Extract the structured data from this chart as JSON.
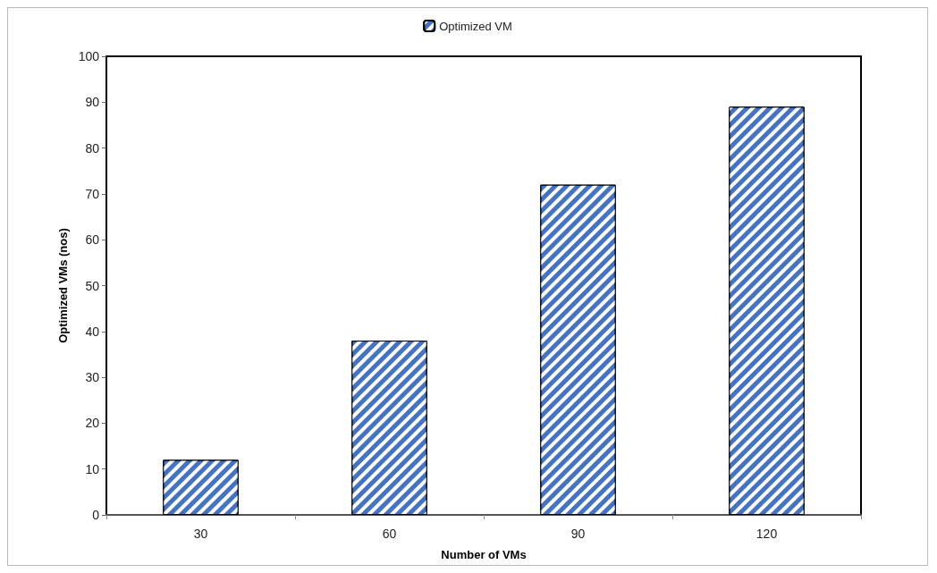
{
  "chart_data": {
    "type": "bar",
    "xlabel": "Number of VMs",
    "ylabel": "Optimized VMs (nos)",
    "categories": [
      "30",
      "60",
      "90",
      "120"
    ],
    "series": [
      {
        "name": "Optimized VM",
        "color": "#4472c4",
        "values": [
          12,
          38,
          72,
          89
        ]
      }
    ],
    "ylim": [
      0,
      100
    ],
    "yticks": [
      0,
      10,
      20,
      30,
      40,
      50,
      60,
      70,
      80,
      90,
      100
    ],
    "grid": false,
    "legend": "top"
  }
}
